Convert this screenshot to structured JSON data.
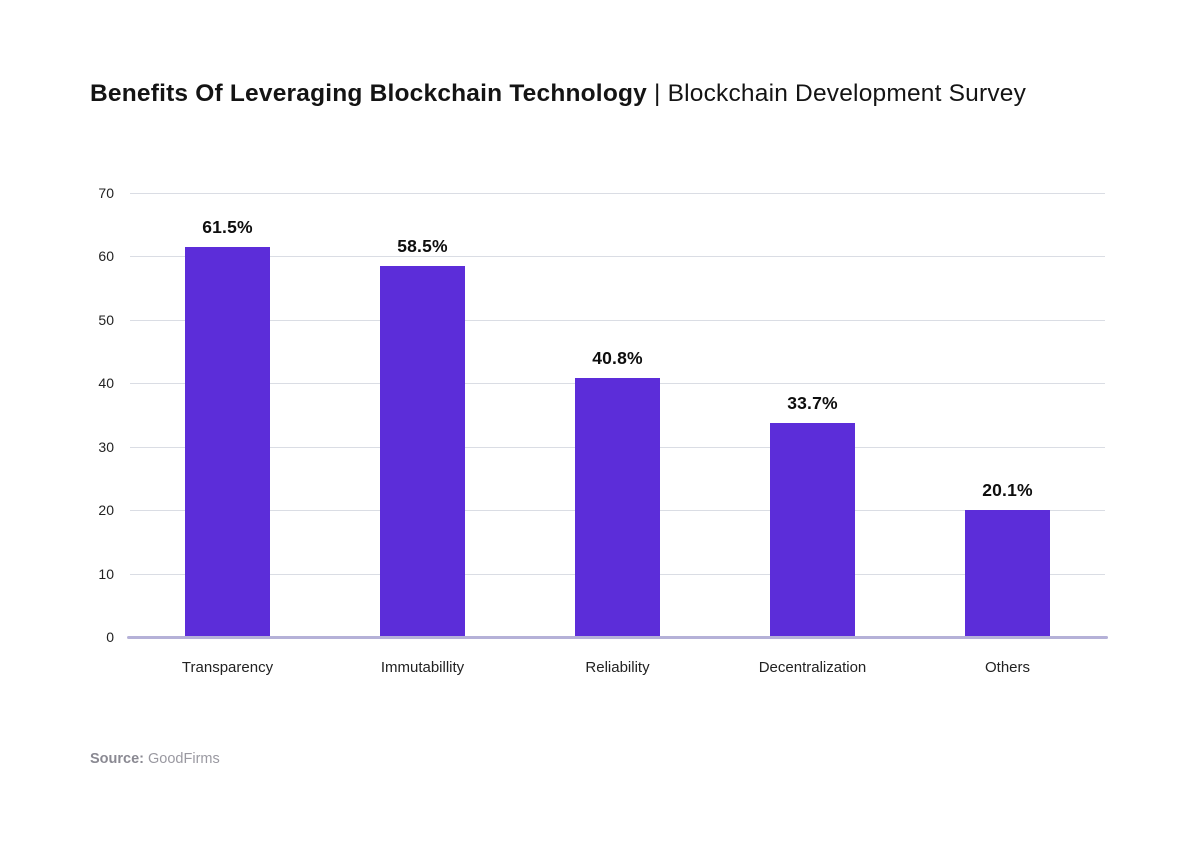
{
  "title": {
    "bold": "Benefits Of Leveraging Blockchain Technology",
    "separator": " | ",
    "regular": "Blockchain Development Survey"
  },
  "source": {
    "label": "Source:",
    "value": " GoodFirms"
  },
  "chart_data": {
    "type": "bar",
    "title": "Benefits Of Leveraging Blockchain Technology | Blockchain Development Survey",
    "categories": [
      "Transparency",
      "Immutabillity",
      "Reliability",
      "Decentralization",
      "Others"
    ],
    "values": [
      61.5,
      58.5,
      40.8,
      33.7,
      20.1
    ],
    "value_labels": [
      "61.5%",
      "58.5%",
      "40.8%",
      "33.7%",
      "20.1%"
    ],
    "xlabel": "",
    "ylabel": "",
    "ylim": [
      0,
      70
    ],
    "yticks": [
      0,
      10,
      20,
      30,
      40,
      50,
      60,
      70
    ],
    "grid": true,
    "legend": "none",
    "bar_color": "#5c2dd9",
    "grid_color": "#dadde4",
    "baseline_color": "#b5b1d8"
  }
}
